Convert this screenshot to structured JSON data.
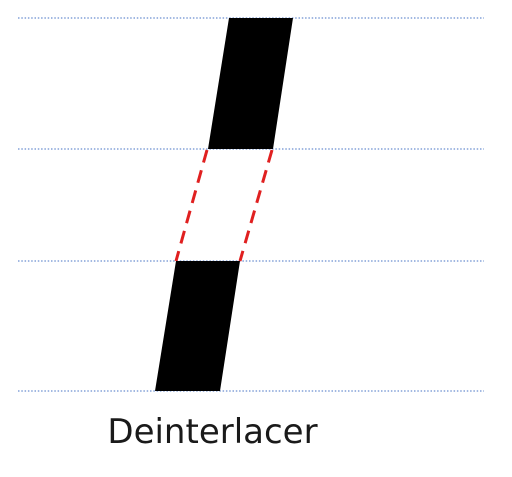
{
  "caption": "Deinterlacer",
  "colors": {
    "scanline": "#4472C4",
    "field_fill": "#000000",
    "interpolated_outline": "#E02020",
    "background": "#FFFFFF"
  },
  "diagram": {
    "scanlines": [
      "line-1",
      "line-2",
      "line-3",
      "line-4"
    ],
    "bands": [
      "upper-field-band",
      "interpolated-band",
      "lower-field-band"
    ]
  }
}
